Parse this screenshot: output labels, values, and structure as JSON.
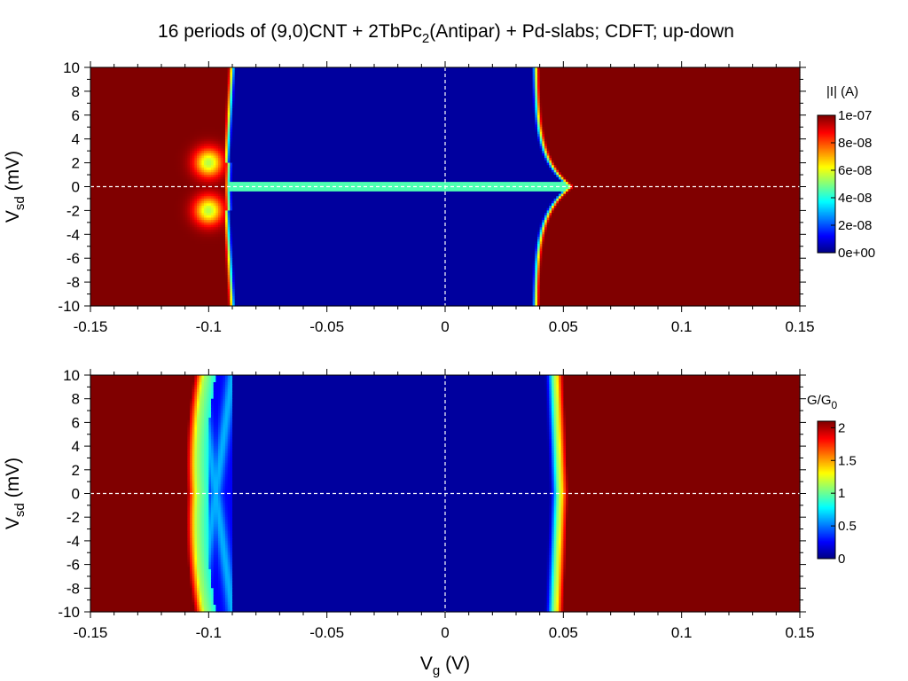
{
  "title": {
    "prefix": "16 periods of (9,0)CNT + 2TbPc",
    "subscript": "2",
    "suffix": "(Antipar) + Pd-slabs; CDFT; up-down"
  },
  "colors": {
    "jet_low": "#00008f",
    "jet_high": "#800000",
    "zero_line": "#ffffff"
  },
  "chart_data": [
    {
      "type": "heatmap",
      "name": "current",
      "x_label_main": "V",
      "x_label_sub": "g",
      "x_label_unit": "(V)",
      "y_label_main": "V",
      "y_label_sub": "sd",
      "y_label_unit": "(mV)",
      "x_range": [
        -0.15,
        0.15
      ],
      "y_range": [
        -10,
        10
      ],
      "x_ticks": [
        -0.15,
        -0.1,
        -0.05,
        0,
        0.05,
        0.1,
        0.15
      ],
      "x_tick_labels": [
        "-0.15",
        "-0.1",
        "-0.05",
        "0",
        "0.05",
        "0.1",
        "0.15"
      ],
      "y_ticks": [
        -10,
        -8,
        -6,
        -4,
        -2,
        0,
        2,
        4,
        6,
        8,
        10
      ],
      "y_tick_labels": [
        "-10",
        "-8",
        "-6",
        "-4",
        "-2",
        "0",
        "2",
        "4",
        "6",
        "8",
        "10"
      ],
      "colorbar": {
        "title": "|I| (A)",
        "range": [
          0,
          1e-07
        ],
        "ticks": [
          0,
          2e-08,
          4e-08,
          6e-08,
          8e-08,
          1e-07
        ],
        "tick_labels": [
          "0e+00",
          "2e-08",
          "4e-08",
          "6e-08",
          "8e-08",
          "1e-07"
        ]
      },
      "features": {
        "blockade_left_edge_Vg": -0.092,
        "blockade_right_edge_Vg": 0.04,
        "right_edge_flare_Vg_at_zero_bias": 0.055,
        "left_side_bump_Vg": -0.1,
        "left_side_bump_Vsd": 2,
        "zero_bias_line_Vsd": 0,
        "saturated_current_A": 1e-07
      },
      "grid": false
    },
    {
      "type": "heatmap",
      "name": "conductance",
      "x_label_main": "V",
      "x_label_sub": "g",
      "x_label_unit": "(V)",
      "y_label_main": "V",
      "y_label_sub": "sd",
      "y_label_unit": "(mV)",
      "x_range": [
        -0.15,
        0.15
      ],
      "y_range": [
        -10,
        10
      ],
      "x_ticks": [
        -0.15,
        -0.1,
        -0.05,
        0,
        0.05,
        0.1,
        0.15
      ],
      "x_tick_labels": [
        "-0.15",
        "-0.1",
        "-0.05",
        "0",
        "0.05",
        "0.1",
        "0.15"
      ],
      "y_ticks": [
        -10,
        -8,
        -6,
        -4,
        -2,
        0,
        2,
        4,
        6,
        8,
        10
      ],
      "y_tick_labels": [
        "-10",
        "-8",
        "-6",
        "-4",
        "-2",
        "0",
        "2",
        "4",
        "6",
        "8",
        "10"
      ],
      "colorbar": {
        "title_main": "G/G",
        "title_sub": "0",
        "range": [
          0,
          2.1
        ],
        "ticks": [
          0,
          0.5,
          1,
          1.5,
          2
        ],
        "tick_labels": [
          "0",
          "0.5",
          "1",
          "1.5",
          "2"
        ]
      },
      "features": {
        "high_conductance_left_edge_Vg": -0.105,
        "high_conductance_right_edge_Vg": 0.047,
        "inner_left_shoulder_Vg": -0.092,
        "saturated_G_over_G0": 2.1
      },
      "grid": false
    }
  ]
}
